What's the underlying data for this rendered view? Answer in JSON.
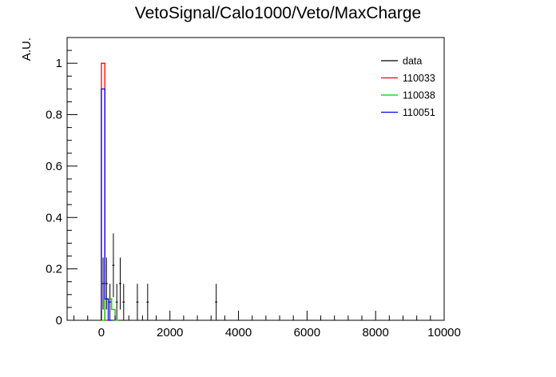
{
  "chart_data": {
    "type": "histogram",
    "title": "VetoSignal/Calo1000/Veto/MaxCharge",
    "xlabel": "",
    "ylabel": "A.U.",
    "xlim": [
      -1000,
      10000
    ],
    "ylim": [
      0,
      1.1
    ],
    "x_ticks": [
      0,
      2000,
      4000,
      6000,
      8000,
      10000
    ],
    "x_tick_labels": [
      "0",
      "2000",
      "4000",
      "6000",
      "8000",
      "10000"
    ],
    "y_ticks": [
      0,
      0.2,
      0.4,
      0.6,
      0.8,
      1
    ],
    "y_tick_labels": [
      "0",
      "0.2",
      "0.4",
      "0.6",
      "0.8",
      "1"
    ],
    "bin_width": 100,
    "legend_position": "top-right",
    "series": [
      {
        "name": "data",
        "kind": "points_with_errors",
        "color": "#000000",
        "points": [
          {
            "x": 50,
            "y": 0.143,
            "err": 0.101
          },
          {
            "x": 150,
            "y": 0.143,
            "err": 0.101
          },
          {
            "x": 250,
            "y": 0.071,
            "err": 0.071
          },
          {
            "x": 350,
            "y": 0.214,
            "err": 0.124
          },
          {
            "x": 450,
            "y": 0.071,
            "err": 0.071
          },
          {
            "x": 550,
            "y": 0.143,
            "err": 0.101
          },
          {
            "x": 650,
            "y": 0.071,
            "err": 0.071
          },
          {
            "x": 1050,
            "y": 0.071,
            "err": 0.071
          },
          {
            "x": 1350,
            "y": 0.071,
            "err": 0.071
          },
          {
            "x": 3350,
            "y": 0.071,
            "err": 0.071
          }
        ]
      },
      {
        "name": "110033",
        "kind": "step",
        "color": "#ff0000",
        "bins": [
          {
            "x": 0,
            "y": 1.0
          },
          {
            "x": 100,
            "y": 0.0
          }
        ]
      },
      {
        "name": "110038",
        "kind": "step",
        "color": "#00cc00",
        "bins": [
          {
            "x": 0,
            "y": 0.0
          },
          {
            "x": 100,
            "y": 0.083
          },
          {
            "x": 200,
            "y": 0.083
          },
          {
            "x": 300,
            "y": 0.042
          },
          {
            "x": 400,
            "y": 0.0
          }
        ]
      },
      {
        "name": "110051",
        "kind": "step",
        "color": "#0000ff",
        "bins": [
          {
            "x": 0,
            "y": 0.9
          },
          {
            "x": 100,
            "y": 0.083
          },
          {
            "x": 200,
            "y": 0.0
          }
        ]
      }
    ]
  }
}
